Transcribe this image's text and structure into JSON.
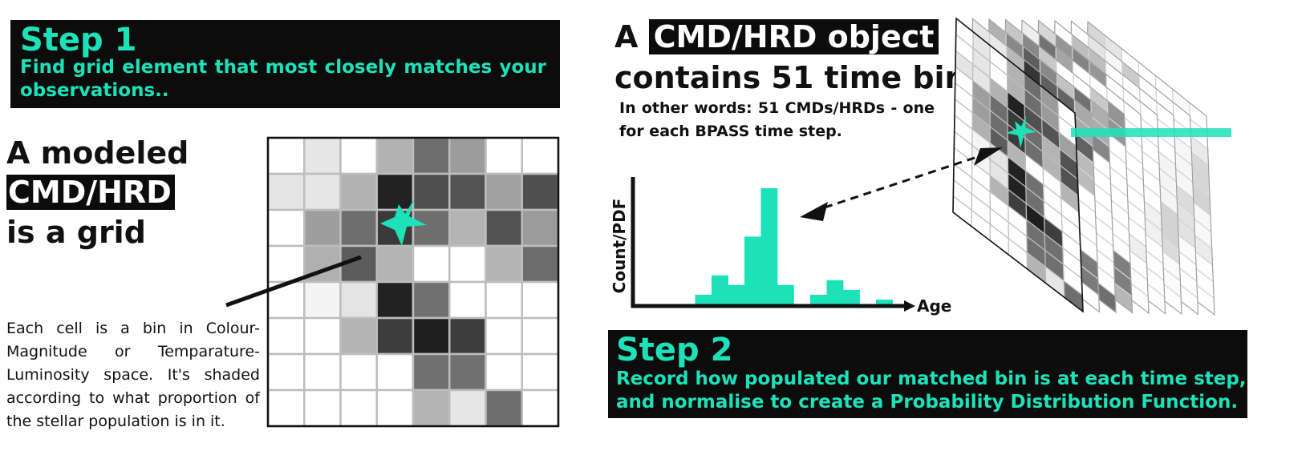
{
  "step1": {
    "title": "Step 1",
    "text": "Find grid element that most closely matches your observations.."
  },
  "left": {
    "heading_line1": "A modeled",
    "heading_highlight": "CMD/HRD",
    "heading_line3": "is a grid",
    "description": "Each cell is a bin in Colour-Magnitude or Temparature-Luminosity space. It's shaded according to what proportion of the stellar population is in it."
  },
  "grid": {
    "shades": [
      [
        "#ffffff",
        "#e6e6e6",
        "#ffffff",
        "#b2b2b2",
        "#6e6e6e",
        "#9b9b9b",
        "#ffffff",
        "#ffffff"
      ],
      [
        "#e4e4e4",
        "#e6e6e6",
        "#b2b2b2",
        "#222222",
        "#505050",
        "#545454",
        "#a0a0a0",
        "#4f4f4f"
      ],
      [
        "#ffffff",
        "#9e9e9e",
        "#6e6e6e",
        "#3a3a3a",
        "#6e6e6e",
        "#b4b4b4",
        "#525252",
        "#9b9b9b"
      ],
      [
        "#ffffff",
        "#b0b0b0",
        "#5c5c5c",
        "#b4b4b4",
        "#ffffff",
        "#ffffff",
        "#b4b4b4",
        "#6c6c6c"
      ],
      [
        "#ffffff",
        "#f4f4f4",
        "#e4e4e4",
        "#222222",
        "#707070",
        "#ffffff",
        "#ffffff",
        "#ffffff"
      ],
      [
        "#ffffff",
        "#ffffff",
        "#b4b4b4",
        "#3e3e3e",
        "#1e1e1e",
        "#3e3e3e",
        "#ffffff",
        "#ffffff"
      ],
      [
        "#ffffff",
        "#ffffff",
        "#ffffff",
        "#ffffff",
        "#707070",
        "#707070",
        "#ffffff",
        "#ffffff"
      ],
      [
        "#ffffff",
        "#ffffff",
        "#ffffff",
        "#ffffff",
        "#b4b4b4",
        "#e6e6e6",
        "#6e6e6e",
        "#ffffff"
      ]
    ]
  },
  "object": {
    "line1_prefix": "A",
    "line1_highlight": "CMD/HRD object",
    "line2": "contains 51 time bins",
    "subtext": "In other words: 51 CMDs/HRDs - one for each BPASS time step."
  },
  "histogram": {
    "ylabel": "Count/PDF",
    "xlabel": "Age",
    "values": [
      0,
      0,
      0,
      1,
      3,
      2,
      7,
      12,
      2,
      0,
      1,
      2.5,
      1.5,
      0,
      0.5,
      0
    ]
  },
  "step2": {
    "title": "Step 2",
    "text_line1": "Record how populated our matched bin is at each time step,",
    "text_line2": "and normalise to create a Probability Distribution Function."
  },
  "colors": {
    "accent": "#1de2b9",
    "box": "#0c0c0c"
  }
}
